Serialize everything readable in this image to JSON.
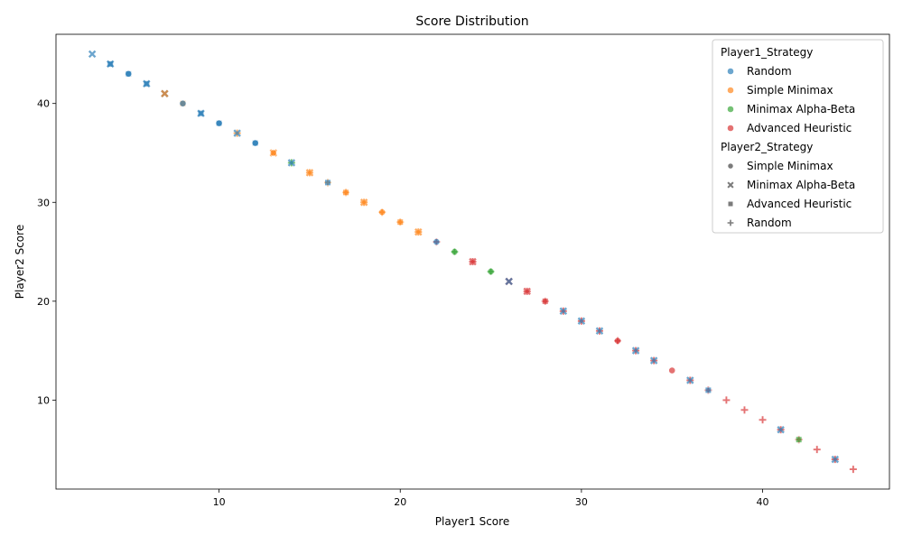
{
  "chart_data": {
    "type": "scatter",
    "title": "Score Distribution",
    "xlabel": "Player1 Score",
    "ylabel": "Player2 Score",
    "xlim": [
      1,
      47
    ],
    "ylim": [
      1,
      47
    ],
    "xticks": [
      10,
      20,
      30,
      40
    ],
    "yticks": [
      10,
      20,
      30,
      40
    ],
    "grid": false,
    "legend_position": "top-right",
    "hue": {
      "title": "Player1_Strategy",
      "entries": [
        {
          "label": "Random",
          "color": "#1f77b4"
        },
        {
          "label": "Simple Minimax",
          "color": "#ff7f0e"
        },
        {
          "label": "Minimax Alpha-Beta",
          "color": "#2ca02c"
        },
        {
          "label": "Advanced Heuristic",
          "color": "#d62728"
        }
      ]
    },
    "style": {
      "title": "Player2_Strategy",
      "entries": [
        {
          "label": "Simple Minimax",
          "marker": "circle"
        },
        {
          "label": "Minimax Alpha-Beta",
          "marker": "x"
        },
        {
          "label": "Advanced Heuristic",
          "marker": "square"
        },
        {
          "label": "Random",
          "marker": "plus"
        }
      ]
    },
    "points": [
      {
        "x": 3,
        "y": 45,
        "p1": "Random",
        "p2": "Minimax Alpha-Beta"
      },
      {
        "x": 4,
        "y": 44,
        "p1": "Random",
        "p2": "Advanced Heuristic"
      },
      {
        "x": 4,
        "y": 44,
        "p1": "Random",
        "p2": "Minimax Alpha-Beta"
      },
      {
        "x": 5,
        "y": 43,
        "p1": "Random",
        "p2": "Advanced Heuristic"
      },
      {
        "x": 5,
        "y": 43,
        "p1": "Random",
        "p2": "Simple Minimax"
      },
      {
        "x": 6,
        "y": 42,
        "p1": "Random",
        "p2": "Advanced Heuristic"
      },
      {
        "x": 6,
        "y": 42,
        "p1": "Random",
        "p2": "Minimax Alpha-Beta"
      },
      {
        "x": 7,
        "y": 41,
        "p1": "Random",
        "p2": "Minimax Alpha-Beta"
      },
      {
        "x": 7,
        "y": 41,
        "p1": "Simple Minimax",
        "p2": "Minimax Alpha-Beta"
      },
      {
        "x": 8,
        "y": 40,
        "p1": "Simple Minimax",
        "p2": "Advanced Heuristic"
      },
      {
        "x": 8,
        "y": 40,
        "p1": "Random",
        "p2": "Simple Minimax"
      },
      {
        "x": 9,
        "y": 39,
        "p1": "Random",
        "p2": "Advanced Heuristic"
      },
      {
        "x": 9,
        "y": 39,
        "p1": "Random",
        "p2": "Minimax Alpha-Beta"
      },
      {
        "x": 10,
        "y": 38,
        "p1": "Random",
        "p2": "Advanced Heuristic"
      },
      {
        "x": 10,
        "y": 38,
        "p1": "Random",
        "p2": "Simple Minimax"
      },
      {
        "x": 11,
        "y": 37,
        "p1": "Simple Minimax",
        "p2": "Random"
      },
      {
        "x": 11,
        "y": 37,
        "p1": "Random",
        "p2": "Minimax Alpha-Beta"
      },
      {
        "x": 12,
        "y": 36,
        "p1": "Random",
        "p2": "Advanced Heuristic"
      },
      {
        "x": 12,
        "y": 36,
        "p1": "Random",
        "p2": "Simple Minimax"
      },
      {
        "x": 13,
        "y": 35,
        "p1": "Simple Minimax",
        "p2": "Minimax Alpha-Beta"
      },
      {
        "x": 13,
        "y": 35,
        "p1": "Simple Minimax",
        "p2": "Simple Minimax"
      },
      {
        "x": 14,
        "y": 34,
        "p1": "Minimax Alpha-Beta",
        "p2": "Random"
      },
      {
        "x": 14,
        "y": 34,
        "p1": "Random",
        "p2": "Minimax Alpha-Beta"
      },
      {
        "x": 15,
        "y": 33,
        "p1": "Simple Minimax",
        "p2": "Random"
      },
      {
        "x": 15,
        "y": 33,
        "p1": "Simple Minimax",
        "p2": "Minimax Alpha-Beta"
      },
      {
        "x": 16,
        "y": 32,
        "p1": "Simple Minimax",
        "p2": "Random"
      },
      {
        "x": 16,
        "y": 32,
        "p1": "Random",
        "p2": "Advanced Heuristic"
      },
      {
        "x": 17,
        "y": 31,
        "p1": "Simple Minimax",
        "p2": "Random"
      },
      {
        "x": 17,
        "y": 31,
        "p1": "Simple Minimax",
        "p2": "Advanced Heuristic"
      },
      {
        "x": 18,
        "y": 30,
        "p1": "Simple Minimax",
        "p2": "Random"
      },
      {
        "x": 18,
        "y": 30,
        "p1": "Simple Minimax",
        "p2": "Minimax Alpha-Beta"
      },
      {
        "x": 19,
        "y": 29,
        "p1": "Simple Minimax",
        "p2": "Random"
      },
      {
        "x": 19,
        "y": 29,
        "p1": "Simple Minimax",
        "p2": "Simple Minimax"
      },
      {
        "x": 20,
        "y": 28,
        "p1": "Simple Minimax",
        "p2": "Random"
      },
      {
        "x": 20,
        "y": 28,
        "p1": "Simple Minimax",
        "p2": "Advanced Heuristic"
      },
      {
        "x": 21,
        "y": 27,
        "p1": "Simple Minimax",
        "p2": "Random"
      },
      {
        "x": 21,
        "y": 27,
        "p1": "Simple Minimax",
        "p2": "Minimax Alpha-Beta"
      },
      {
        "x": 22,
        "y": 26,
        "p1": "Advanced Heuristic",
        "p2": "Random"
      },
      {
        "x": 22,
        "y": 26,
        "p1": "Random",
        "p2": "Simple Minimax"
      },
      {
        "x": 23,
        "y": 25,
        "p1": "Minimax Alpha-Beta",
        "p2": "Random"
      },
      {
        "x": 23,
        "y": 25,
        "p1": "Minimax Alpha-Beta",
        "p2": "Simple Minimax"
      },
      {
        "x": 24,
        "y": 24,
        "p1": "Advanced Heuristic",
        "p2": "Random"
      },
      {
        "x": 24,
        "y": 24,
        "p1": "Advanced Heuristic",
        "p2": "Minimax Alpha-Beta"
      },
      {
        "x": 25,
        "y": 23,
        "p1": "Minimax Alpha-Beta",
        "p2": "Random"
      },
      {
        "x": 25,
        "y": 23,
        "p1": "Minimax Alpha-Beta",
        "p2": "Simple Minimax"
      },
      {
        "x": 26,
        "y": 22,
        "p1": "Advanced Heuristic",
        "p2": "Minimax Alpha-Beta"
      },
      {
        "x": 26,
        "y": 22,
        "p1": "Random",
        "p2": "Minimax Alpha-Beta"
      },
      {
        "x": 27,
        "y": 21,
        "p1": "Advanced Heuristic",
        "p2": "Random"
      },
      {
        "x": 27,
        "y": 21,
        "p1": "Advanced Heuristic",
        "p2": "Minimax Alpha-Beta"
      },
      {
        "x": 28,
        "y": 20,
        "p1": "Advanced Heuristic",
        "p2": "Random"
      },
      {
        "x": 28,
        "y": 20,
        "p1": "Advanced Heuristic",
        "p2": "Advanced Heuristic"
      },
      {
        "x": 29,
        "y": 19,
        "p1": "Advanced Heuristic",
        "p2": "Random"
      },
      {
        "x": 29,
        "y": 19,
        "p1": "Random",
        "p2": "Minimax Alpha-Beta"
      },
      {
        "x": 30,
        "y": 18,
        "p1": "Advanced Heuristic",
        "p2": "Random"
      },
      {
        "x": 30,
        "y": 18,
        "p1": "Random",
        "p2": "Minimax Alpha-Beta"
      },
      {
        "x": 31,
        "y": 17,
        "p1": "Advanced Heuristic",
        "p2": "Random"
      },
      {
        "x": 31,
        "y": 17,
        "p1": "Random",
        "p2": "Minimax Alpha-Beta"
      },
      {
        "x": 32,
        "y": 16,
        "p1": "Advanced Heuristic",
        "p2": "Random"
      },
      {
        "x": 32,
        "y": 16,
        "p1": "Advanced Heuristic",
        "p2": "Simple Minimax"
      },
      {
        "x": 33,
        "y": 15,
        "p1": "Advanced Heuristic",
        "p2": "Random"
      },
      {
        "x": 33,
        "y": 15,
        "p1": "Random",
        "p2": "Minimax Alpha-Beta"
      },
      {
        "x": 34,
        "y": 14,
        "p1": "Advanced Heuristic",
        "p2": "Random"
      },
      {
        "x": 34,
        "y": 14,
        "p1": "Random",
        "p2": "Minimax Alpha-Beta"
      },
      {
        "x": 35,
        "y": 13,
        "p1": "Advanced Heuristic",
        "p2": "Simple Minimax"
      },
      {
        "x": 36,
        "y": 12,
        "p1": "Advanced Heuristic",
        "p2": "Random"
      },
      {
        "x": 36,
        "y": 12,
        "p1": "Random",
        "p2": "Minimax Alpha-Beta"
      },
      {
        "x": 37,
        "y": 11,
        "p1": "Advanced Heuristic",
        "p2": "Random"
      },
      {
        "x": 37,
        "y": 11,
        "p1": "Random",
        "p2": "Advanced Heuristic"
      },
      {
        "x": 38,
        "y": 10,
        "p1": "Advanced Heuristic",
        "p2": "Random"
      },
      {
        "x": 39,
        "y": 9,
        "p1": "Advanced Heuristic",
        "p2": "Random"
      },
      {
        "x": 40,
        "y": 8,
        "p1": "Advanced Heuristic",
        "p2": "Random"
      },
      {
        "x": 41,
        "y": 7,
        "p1": "Advanced Heuristic",
        "p2": "Random"
      },
      {
        "x": 41,
        "y": 7,
        "p1": "Random",
        "p2": "Minimax Alpha-Beta"
      },
      {
        "x": 42,
        "y": 6,
        "p1": "Advanced Heuristic",
        "p2": "Random"
      },
      {
        "x": 42,
        "y": 6,
        "p1": "Minimax Alpha-Beta",
        "p2": "Advanced Heuristic"
      },
      {
        "x": 43,
        "y": 5,
        "p1": "Advanced Heuristic",
        "p2": "Random"
      },
      {
        "x": 44,
        "y": 4,
        "p1": "Advanced Heuristic",
        "p2": "Random"
      },
      {
        "x": 44,
        "y": 4,
        "p1": "Random",
        "p2": "Minimax Alpha-Beta"
      },
      {
        "x": 45,
        "y": 3,
        "p1": "Advanced Heuristic",
        "p2": "Random"
      }
    ]
  }
}
